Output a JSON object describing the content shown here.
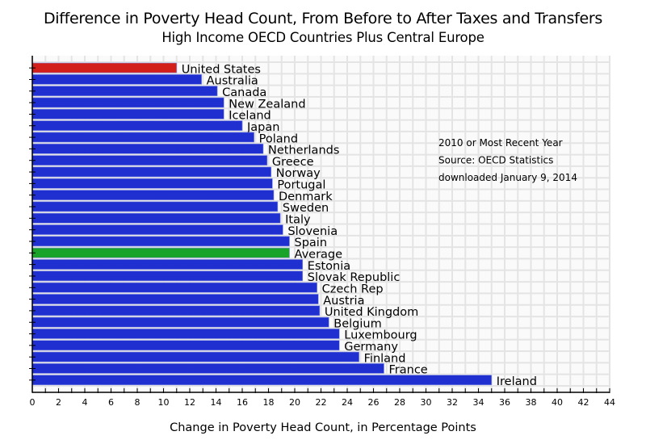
{
  "chart_data": {
    "type": "bar",
    "orientation": "horizontal",
    "title": "Difference in Poverty Head Count, From Before to After Taxes and Transfers",
    "subtitle": "High Income OECD Countries Plus Central Europe",
    "xlabel": "Change in Poverty Head Count, in Percentage Points",
    "ylabel": "",
    "xlim": [
      0,
      44
    ],
    "xticks": [
      0,
      2,
      4,
      6,
      8,
      10,
      12,
      14,
      16,
      18,
      20,
      22,
      24,
      26,
      28,
      30,
      32,
      34,
      36,
      38,
      40,
      42,
      44
    ],
    "grid": true,
    "annotations": [
      "2010 or Most Recent Year",
      "Source:  OECD Statistics",
      "downloaded January 9, 2014"
    ],
    "annotation_placement": "upper-right",
    "colors": {
      "default": "#1f2fd0",
      "highlight_us": "#d21f1a",
      "average": "#1aa32a"
    },
    "categories": [
      "United States",
      "Australia",
      "Canada",
      "New Zealand",
      "Iceland",
      "Japan",
      "Poland",
      "Netherlands",
      "Greece",
      "Norway",
      "Portugal",
      "Denmark",
      "Sweden",
      "Italy",
      "Slovenia",
      "Spain",
      "Average",
      "Estonia",
      "Slovak Republic",
      "Czech Rep",
      "Austria",
      "United Kingdom",
      "Belgium",
      "Luxembourg",
      "Germany",
      "Finland",
      "France",
      "Ireland"
    ],
    "values": [
      11.0,
      12.9,
      14.1,
      14.6,
      14.6,
      16.0,
      16.9,
      17.6,
      17.9,
      18.2,
      18.3,
      18.4,
      18.7,
      18.9,
      19.1,
      19.6,
      19.6,
      20.6,
      20.6,
      21.7,
      21.8,
      21.9,
      22.6,
      23.4,
      23.4,
      24.9,
      26.8,
      35.0
    ],
    "bar_color_keys": [
      "highlight_us",
      "default",
      "default",
      "default",
      "default",
      "default",
      "default",
      "default",
      "default",
      "default",
      "default",
      "default",
      "default",
      "default",
      "default",
      "default",
      "average",
      "default",
      "default",
      "default",
      "default",
      "default",
      "default",
      "default",
      "default",
      "default",
      "default",
      "default"
    ]
  }
}
